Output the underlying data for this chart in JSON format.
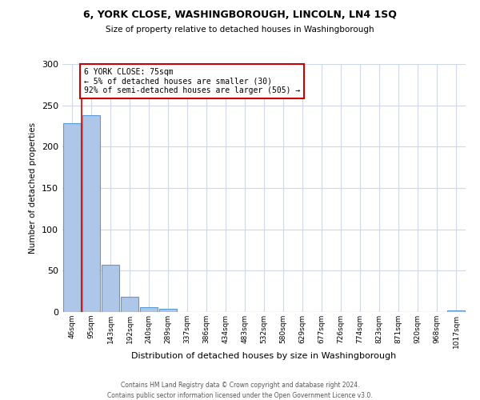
{
  "title": "6, YORK CLOSE, WASHINGBOROUGH, LINCOLN, LN4 1SQ",
  "subtitle": "Size of property relative to detached houses in Washingborough",
  "xlabel": "Distribution of detached houses by size in Washingborough",
  "ylabel": "Number of detached properties",
  "bar_labels": [
    "46sqm",
    "95sqm",
    "143sqm",
    "192sqm",
    "240sqm",
    "289sqm",
    "337sqm",
    "386sqm",
    "434sqm",
    "483sqm",
    "532sqm",
    "580sqm",
    "629sqm",
    "677sqm",
    "726sqm",
    "774sqm",
    "823sqm",
    "871sqm",
    "920sqm",
    "968sqm",
    "1017sqm"
  ],
  "bar_values": [
    228,
    238,
    57,
    18,
    6,
    4,
    0,
    0,
    0,
    0,
    0,
    0,
    0,
    0,
    0,
    0,
    0,
    0,
    0,
    0,
    2
  ],
  "bar_color": "#aec6e8",
  "bar_edge_color": "#5b9bd5",
  "ylim": [
    0,
    300
  ],
  "yticks": [
    0,
    50,
    100,
    150,
    200,
    250,
    300
  ],
  "property_label": "6 YORK CLOSE: 75sqm",
  "annotation_line1": "← 5% of detached houses are smaller (30)",
  "annotation_line2": "92% of semi-detached houses are larger (505) →",
  "annotation_box_color": "#ffffff",
  "annotation_box_edge": "#cc0000",
  "footer_line1": "Contains HM Land Registry data © Crown copyright and database right 2024.",
  "footer_line2": "Contains public sector information licensed under the Open Government Licence v3.0.",
  "background_color": "#ffffff",
  "grid_color": "#d0d8e8"
}
